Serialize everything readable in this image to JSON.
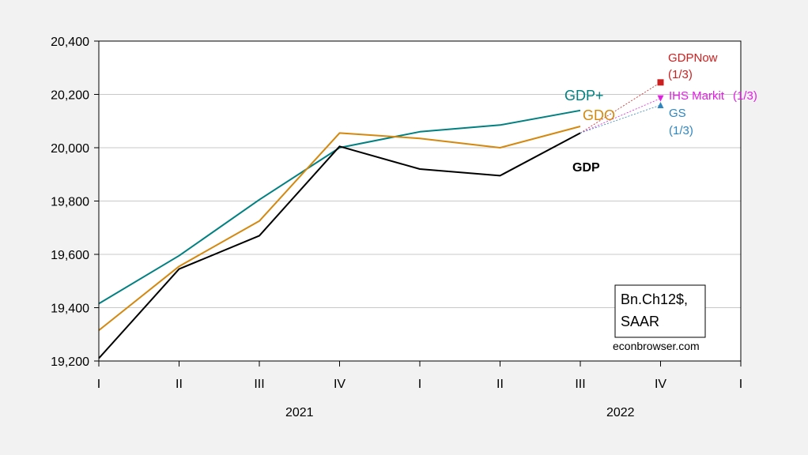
{
  "chart_data": {
    "type": "line",
    "categories": [
      "I",
      "II",
      "III",
      "IV",
      "I",
      "II",
      "III",
      "IV",
      "I"
    ],
    "year_labels": [
      {
        "label": "2021",
        "center_index": 2
      },
      {
        "label": "2022",
        "center_index": 6
      }
    ],
    "ylim": [
      19200,
      20400
    ],
    "yticks": [
      19200,
      19400,
      19600,
      19800,
      20000,
      20200,
      20400
    ],
    "ytick_labels": [
      "19,200",
      "19,400",
      "19,600",
      "19,800",
      "20,000",
      "20,200",
      "20,400"
    ],
    "grid": true,
    "series": [
      {
        "name": "GDP",
        "color": "#000000",
        "x": [
          0,
          1,
          2,
          3,
          4,
          5,
          6
        ],
        "values": [
          19210,
          19545,
          19670,
          20005,
          19920,
          19895,
          20055
        ]
      },
      {
        "name": "GDO",
        "color": "#d4880e",
        "x": [
          0,
          1,
          2,
          3,
          4,
          5,
          6
        ],
        "values": [
          19315,
          19555,
          19725,
          20055,
          20035,
          20000,
          20080
        ]
      },
      {
        "name": "GDP+",
        "color": "#008080",
        "x": [
          0,
          1,
          2,
          3,
          4,
          5,
          6
        ],
        "values": [
          19415,
          19595,
          19805,
          20000,
          20060,
          20085,
          20140
        ]
      }
    ],
    "nowcasts": [
      {
        "name": "GDPNow",
        "date": "(1/3)",
        "x": 7,
        "value": 20245,
        "color": "#cc1f1f",
        "marker": "square"
      },
      {
        "name": "IHS Markit",
        "date": "(1/3)",
        "x": 7,
        "value": 20185,
        "color": "#e020e0",
        "marker": "triangle-down"
      },
      {
        "name": "GS",
        "date": "(1/3)",
        "x": 7,
        "value": 20160,
        "color": "#2e86c1",
        "marker": "triangle-up"
      }
    ],
    "note": {
      "line1": "Bn.Ch12$,",
      "line2": "SAAR"
    },
    "source": "econbrowser.com"
  }
}
